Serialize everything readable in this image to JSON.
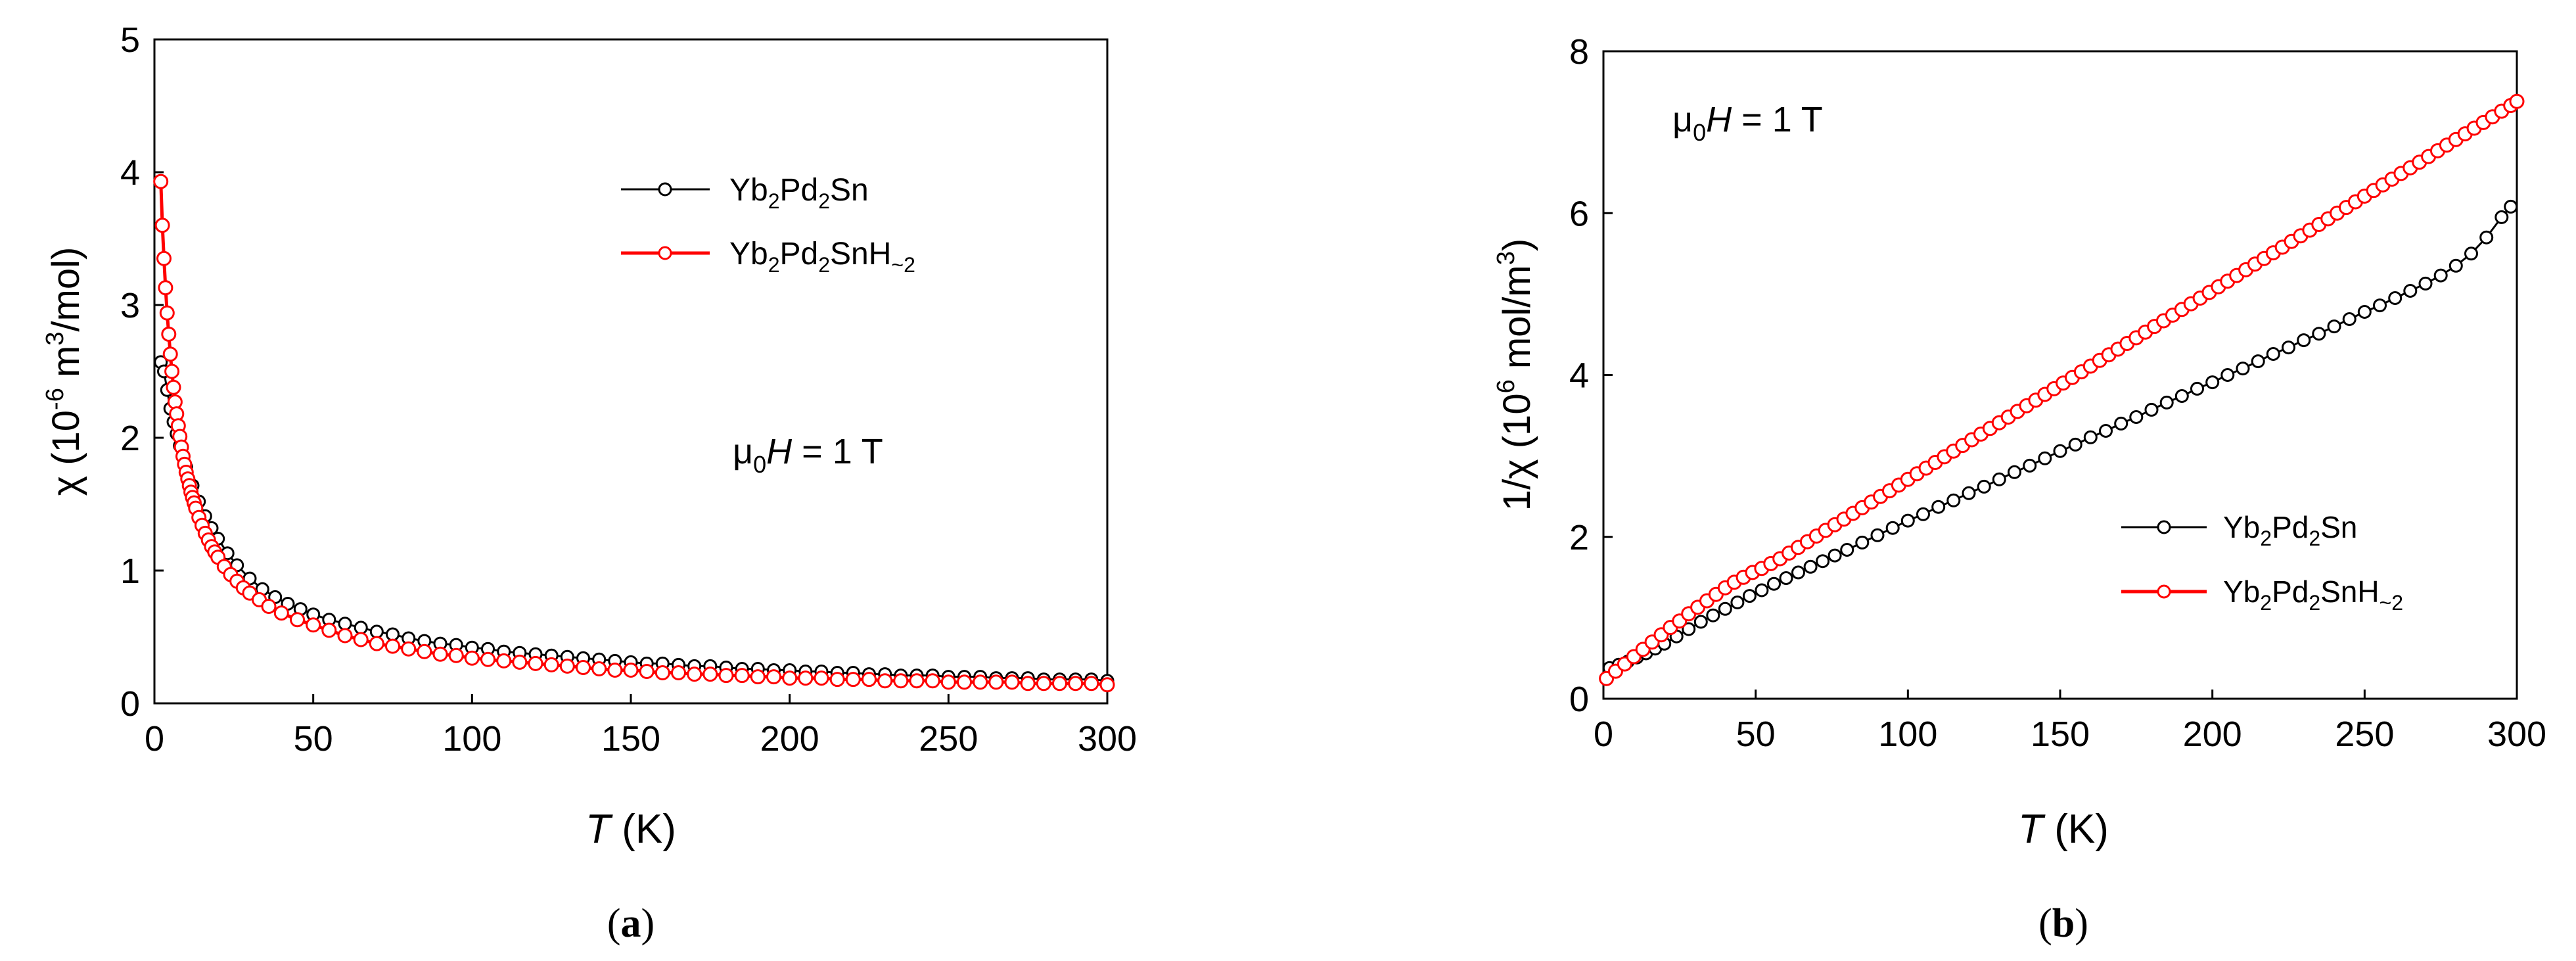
{
  "figure": {
    "panels": [
      {
        "id": "a",
        "caption_letter": "a",
        "annotation": {
          "prefix": "μ",
          "sub": "0",
          "italic": "H",
          "rest": " = 1 T"
        },
        "legend": [
          {
            "name": "Yb2Pd2Sn",
            "label_parts": [
              [
                "Yb",
                ""
              ],
              [
                "2",
                "sub"
              ],
              [
                "Pd",
                ""
              ],
              [
                "2",
                "sub"
              ],
              [
                "Sn",
                ""
              ]
            ]
          },
          {
            "name": "Yb2Pd2SnH~2",
            "label_parts": [
              [
                "Yb",
                ""
              ],
              [
                "2",
                "sub"
              ],
              [
                "Pd",
                ""
              ],
              [
                "2",
                "sub"
              ],
              [
                "SnH",
                ""
              ],
              [
                "~2",
                "sub"
              ]
            ]
          }
        ]
      },
      {
        "id": "b",
        "caption_letter": "b",
        "annotation": {
          "prefix": "μ",
          "sub": "0",
          "italic": "H",
          "rest": " = 1 T"
        },
        "legend": [
          {
            "name": "Yb2Pd2Sn",
            "label_parts": [
              [
                "Yb",
                ""
              ],
              [
                "2",
                "sub"
              ],
              [
                "Pd",
                ""
              ],
              [
                "2",
                "sub"
              ],
              [
                "Sn",
                ""
              ]
            ]
          },
          {
            "name": "Yb2Pd2SnH~2",
            "label_parts": [
              [
                "Yb",
                ""
              ],
              [
                "2",
                "sub"
              ],
              [
                "Pd",
                ""
              ],
              [
                "2",
                "sub"
              ],
              [
                "SnH",
                ""
              ],
              [
                "~2",
                "sub"
              ]
            ]
          }
        ]
      }
    ]
  },
  "chart_data": [
    {
      "type": "scatter",
      "title": "",
      "xlabel": {
        "italic": "T",
        "rest": " (K)"
      },
      "ylabel": {
        "lead": "χ (10",
        "sup1": "-6",
        "mid": " m",
        "sup2": "3",
        "tail": "/mol)"
      },
      "xlim": [
        0,
        300
      ],
      "ylim": [
        0,
        5
      ],
      "xticks": [
        "0",
        "50",
        "100",
        "150",
        "200",
        "250",
        "300"
      ],
      "yticks": [
        "0",
        "1",
        "2",
        "3",
        "4",
        "5"
      ],
      "series": [
        {
          "name": "Yb2Pd2Sn",
          "color": "#000000",
          "x": [
            2,
            3,
            4,
            5,
            6,
            7,
            8,
            9,
            10,
            12,
            14,
            16,
            18,
            20,
            23,
            26,
            30,
            34,
            38,
            42,
            46,
            50,
            55,
            60,
            65,
            70,
            75,
            80,
            85,
            90,
            95,
            100,
            105,
            110,
            115,
            120,
            125,
            130,
            135,
            140,
            145,
            150,
            155,
            160,
            165,
            170,
            175,
            180,
            185,
            190,
            195,
            200,
            205,
            210,
            215,
            220,
            225,
            230,
            235,
            240,
            245,
            250,
            255,
            260,
            265,
            270,
            275,
            280,
            285,
            290,
            295,
            300
          ],
          "y": [
            2.57,
            2.5,
            2.36,
            2.22,
            2.12,
            2.03,
            1.94,
            1.86,
            1.78,
            1.64,
            1.52,
            1.41,
            1.32,
            1.24,
            1.13,
            1.04,
            0.94,
            0.86,
            0.8,
            0.75,
            0.71,
            0.67,
            0.63,
            0.6,
            0.57,
            0.54,
            0.52,
            0.49,
            0.47,
            0.45,
            0.44,
            0.42,
            0.41,
            0.39,
            0.38,
            0.37,
            0.36,
            0.35,
            0.34,
            0.33,
            0.32,
            0.31,
            0.3,
            0.3,
            0.29,
            0.28,
            0.28,
            0.27,
            0.26,
            0.26,
            0.25,
            0.25,
            0.24,
            0.24,
            0.23,
            0.23,
            0.22,
            0.22,
            0.21,
            0.21,
            0.21,
            0.2,
            0.2,
            0.2,
            0.19,
            0.19,
            0.19,
            0.18,
            0.18,
            0.18,
            0.18,
            0.17
          ]
        },
        {
          "name": "Yb2Pd2SnH~2",
          "color": "#ff0000",
          "x": [
            2,
            2.5,
            3,
            3.5,
            4,
            4.5,
            5,
            5.5,
            6,
            6.5,
            7,
            7.5,
            8,
            8.5,
            9,
            9.5,
            10,
            10.5,
            11,
            11.5,
            12,
            12.5,
            13,
            14,
            15,
            16,
            17,
            18,
            19,
            20,
            22,
            24,
            26,
            28,
            30,
            33,
            36,
            40,
            45,
            50,
            55,
            60,
            65,
            70,
            75,
            80,
            85,
            90,
            95,
            100,
            105,
            110,
            115,
            120,
            125,
            130,
            135,
            140,
            145,
            150,
            155,
            160,
            165,
            170,
            175,
            180,
            185,
            190,
            195,
            200,
            205,
            210,
            215,
            220,
            225,
            230,
            235,
            240,
            245,
            250,
            255,
            260,
            265,
            270,
            275,
            280,
            285,
            290,
            295,
            300
          ],
          "y": [
            3.93,
            3.6,
            3.35,
            3.13,
            2.94,
            2.78,
            2.63,
            2.5,
            2.38,
            2.27,
            2.18,
            2.09,
            2.01,
            1.93,
            1.86,
            1.8,
            1.74,
            1.69,
            1.64,
            1.59,
            1.55,
            1.51,
            1.47,
            1.4,
            1.34,
            1.28,
            1.23,
            1.18,
            1.14,
            1.1,
            1.03,
            0.97,
            0.92,
            0.87,
            0.83,
            0.78,
            0.73,
            0.68,
            0.63,
            0.59,
            0.55,
            0.51,
            0.48,
            0.45,
            0.43,
            0.41,
            0.39,
            0.37,
            0.36,
            0.34,
            0.33,
            0.32,
            0.31,
            0.3,
            0.29,
            0.28,
            0.27,
            0.26,
            0.25,
            0.25,
            0.24,
            0.23,
            0.23,
            0.22,
            0.22,
            0.21,
            0.21,
            0.2,
            0.2,
            0.19,
            0.19,
            0.19,
            0.18,
            0.18,
            0.18,
            0.17,
            0.17,
            0.17,
            0.17,
            0.16,
            0.16,
            0.16,
            0.16,
            0.16,
            0.15,
            0.15,
            0.15,
            0.15,
            0.15,
            0.14
          ]
        }
      ]
    },
    {
      "type": "scatter",
      "title": "",
      "xlabel": {
        "italic": "T",
        "rest": " (K)"
      },
      "ylabel": {
        "lead": "1/χ (10",
        "sup1": "6",
        "mid": " mol/m",
        "sup2": "3",
        "tail": ")"
      },
      "xlim": [
        0,
        300
      ],
      "ylim": [
        0,
        8
      ],
      "xticks": [
        "0",
        "50",
        "100",
        "150",
        "200",
        "250",
        "300"
      ],
      "yticks": [
        "0",
        "2",
        "4",
        "6",
        "8"
      ],
      "series": [
        {
          "name": "Yb2Pd2Sn",
          "color": "#000000",
          "x": [
            2,
            5,
            8,
            11,
            14,
            17,
            20,
            24,
            28,
            32,
            36,
            40,
            44,
            48,
            52,
            56,
            60,
            64,
            68,
            72,
            76,
            80,
            85,
            90,
            95,
            100,
            105,
            110,
            115,
            120,
            125,
            130,
            135,
            140,
            145,
            150,
            155,
            160,
            165,
            170,
            175,
            180,
            185,
            190,
            195,
            200,
            205,
            210,
            215,
            220,
            225,
            230,
            235,
            240,
            245,
            250,
            255,
            260,
            265,
            270,
            275,
            280,
            285,
            290,
            295,
            298
          ],
          "y": [
            0.38,
            0.42,
            0.46,
            0.51,
            0.56,
            0.62,
            0.68,
            0.77,
            0.86,
            0.95,
            1.03,
            1.11,
            1.19,
            1.27,
            1.34,
            1.42,
            1.49,
            1.56,
            1.63,
            1.7,
            1.77,
            1.84,
            1.93,
            2.02,
            2.11,
            2.2,
            2.28,
            2.37,
            2.45,
            2.54,
            2.62,
            2.71,
            2.8,
            2.88,
            2.97,
            3.06,
            3.14,
            3.23,
            3.31,
            3.4,
            3.48,
            3.57,
            3.66,
            3.74,
            3.83,
            3.91,
            4.0,
            4.08,
            4.17,
            4.26,
            4.34,
            4.43,
            4.51,
            4.6,
            4.69,
            4.78,
            4.86,
            4.95,
            5.04,
            5.13,
            5.23,
            5.35,
            5.5,
            5.7,
            5.95,
            6.08
          ]
        },
        {
          "name": "Yb2Pd2SnH~2",
          "color": "#ff0000",
          "x": [
            1,
            4,
            7,
            10,
            13,
            16,
            19,
            22,
            25,
            28,
            31,
            34,
            37,
            40,
            43,
            46,
            49,
            52,
            55,
            58,
            61,
            64,
            67,
            70,
            73,
            76,
            79,
            82,
            85,
            88,
            91,
            94,
            97,
            100,
            103,
            106,
            109,
            112,
            115,
            118,
            121,
            124,
            127,
            130,
            133,
            136,
            139,
            142,
            145,
            148,
            151,
            154,
            157,
            160,
            163,
            166,
            169,
            172,
            175,
            178,
            181,
            184,
            187,
            190,
            193,
            196,
            199,
            202,
            205,
            208,
            211,
            214,
            217,
            220,
            223,
            226,
            229,
            232,
            235,
            238,
            241,
            244,
            247,
            250,
            253,
            256,
            259,
            262,
            265,
            268,
            271,
            274,
            277,
            280,
            283,
            286,
            289,
            292,
            295,
            298,
            300
          ],
          "y": [
            0.25,
            0.34,
            0.43,
            0.52,
            0.61,
            0.7,
            0.79,
            0.88,
            0.96,
            1.05,
            1.13,
            1.21,
            1.29,
            1.37,
            1.44,
            1.5,
            1.56,
            1.61,
            1.67,
            1.73,
            1.8,
            1.87,
            1.94,
            2.01,
            2.08,
            2.15,
            2.22,
            2.29,
            2.36,
            2.43,
            2.5,
            2.57,
            2.64,
            2.71,
            2.78,
            2.85,
            2.92,
            2.99,
            3.06,
            3.13,
            3.2,
            3.27,
            3.34,
            3.41,
            3.48,
            3.55,
            3.62,
            3.69,
            3.76,
            3.83,
            3.9,
            3.97,
            4.04,
            4.11,
            4.18,
            4.25,
            4.32,
            4.39,
            4.46,
            4.53,
            4.6,
            4.67,
            4.74,
            4.81,
            4.88,
            4.95,
            5.02,
            5.09,
            5.16,
            5.23,
            5.3,
            5.37,
            5.44,
            5.51,
            5.58,
            5.65,
            5.72,
            5.79,
            5.86,
            5.93,
            6.0,
            6.07,
            6.14,
            6.21,
            6.28,
            6.35,
            6.42,
            6.49,
            6.56,
            6.63,
            6.7,
            6.77,
            6.84,
            6.91,
            6.98,
            7.05,
            7.12,
            7.19,
            7.26,
            7.33,
            7.38
          ]
        }
      ]
    }
  ]
}
